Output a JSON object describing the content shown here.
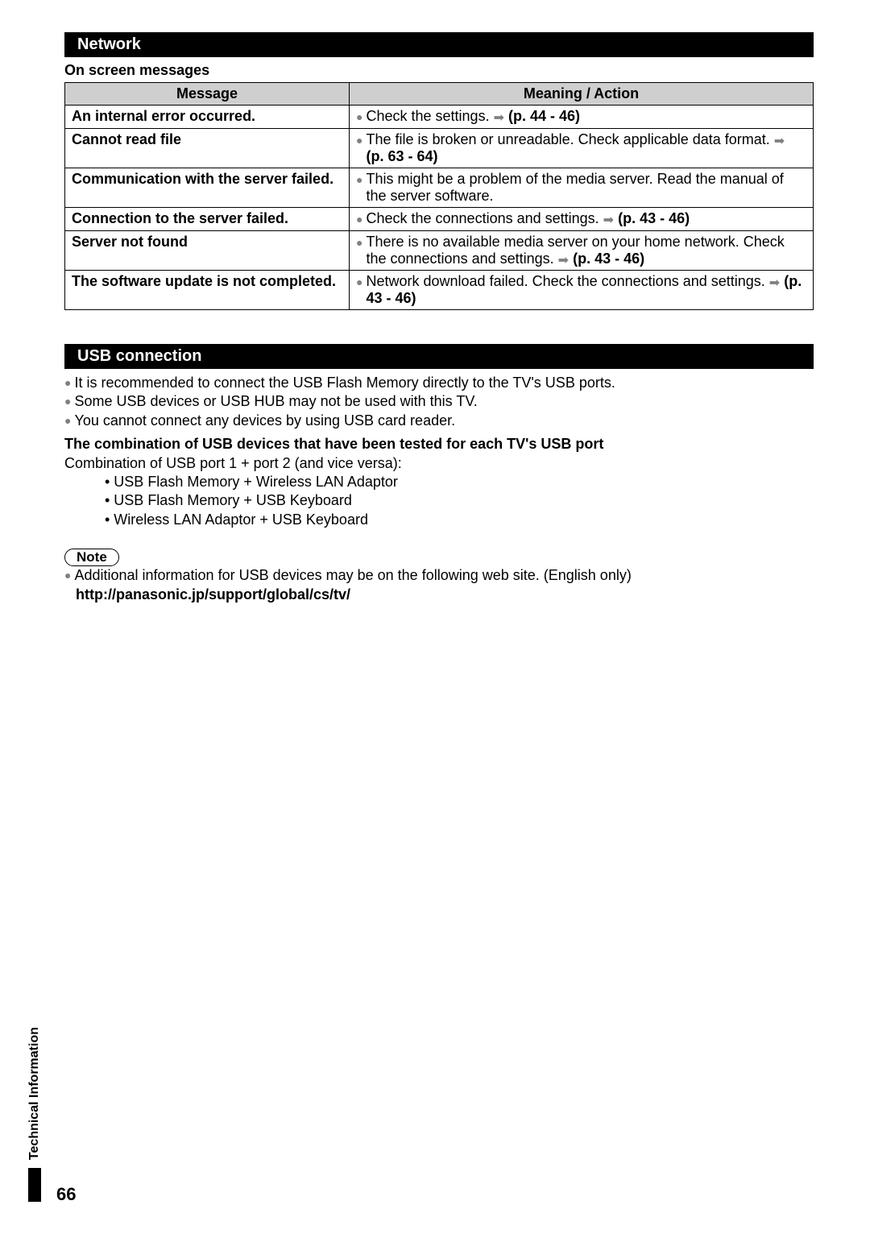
{
  "network_section": {
    "title": "Network",
    "subtitle": "On screen messages",
    "table": {
      "headers": [
        "Message",
        "Meaning / Action"
      ],
      "rows": [
        {
          "message": "An internal error occurred.",
          "action_pre": "Check the settings. ",
          "action_ref": "(p. 44 - 46)"
        },
        {
          "message": "Cannot read file",
          "action_pre": "The file is broken or unreadable. Check applicable data format. ",
          "action_ref": "(p. 63 - 64)"
        },
        {
          "message": "Communication with the server failed.",
          "action_pre": "This might be a problem of the media server. Read the manual of the server software.",
          "action_ref": ""
        },
        {
          "message": "Connection to the server failed.",
          "action_pre": "Check the connections and settings. ",
          "action_ref": "(p. 43 - 46)"
        },
        {
          "message": "Server not found",
          "action_pre": "There is no available media server on your home network. Check the connections and settings. ",
          "action_ref": "(p. 43 - 46)"
        },
        {
          "message": "The software update is not completed.",
          "action_pre": "Network download failed. Check the connections and settings. ",
          "action_ref": "(p. 43 - 46)"
        }
      ]
    }
  },
  "usb_section": {
    "title": "USB connection",
    "bullets": [
      "It is recommended to connect the USB Flash Memory directly to the TV's USB ports.",
      "Some USB devices or USB HUB may not be used with this TV.",
      "You cannot connect any devices by using USB card reader."
    ],
    "combo_heading": "The combination of USB devices that have been tested for each TV's USB port",
    "combo_intro": "Combination of USB port 1 + port 2 (and vice versa):",
    "combo_items": [
      "USB Flash Memory + Wireless LAN Adaptor",
      "USB Flash Memory + USB Keyboard",
      "Wireless LAN Adaptor + USB Keyboard"
    ],
    "note_label": "Note",
    "note_text": "Additional information for USB devices may be on the following web site. (English only)",
    "note_url": "http://panasonic.jp/support/global/cs/tv/"
  },
  "side_tab": "Technical Information",
  "page_number": "66"
}
